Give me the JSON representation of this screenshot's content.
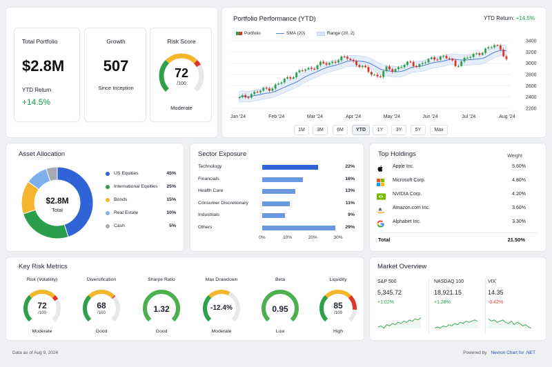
{
  "summary": {
    "total_portfolio": {
      "title": "Total Portfolio",
      "value": "$2.8M",
      "sub_label": "YTD Return",
      "sub_value": "+14.5%"
    },
    "growth": {
      "title": "Growth",
      "value": "507",
      "sub_label": "Since Inception"
    },
    "risk_score": {
      "title": "Risk Score",
      "value": "72",
      "denom": "/100",
      "label": "Moderate",
      "level": 0.72
    }
  },
  "performance": {
    "title": "Portfolio Performance (YTD)",
    "ytd_label": "YTD Return:",
    "ytd_value": "+14.5%",
    "legend": {
      "portfolio": "Portfolio",
      "sma": "SMA (20)",
      "range": "Range (20, 2)"
    },
    "ranges": [
      "1M",
      "3M",
      "6M",
      "YTD",
      "1Y",
      "3Y",
      "5Y",
      "Max"
    ],
    "active_range": "YTD"
  },
  "chart_data": {
    "type": "candlestick",
    "x_ticks": [
      "Jan '24",
      "Feb '24",
      "Mar '24",
      "Apr '24",
      "May '24",
      "Jun '24",
      "Jul '24",
      "Aug '24"
    ],
    "ylim": [
      2200,
      3400
    ],
    "y_ticks": [
      2200,
      2400,
      2600,
      2800,
      3000,
      3200,
      3400
    ],
    "series": [
      {
        "name": "Portfolio",
        "close": [
          2380,
          2410,
          2460,
          2500,
          2540,
          2560,
          2620,
          2700,
          2760,
          2820,
          2880,
          2900,
          2950,
          3000,
          2980,
          3050,
          3080,
          3100,
          3020,
          2950,
          2880,
          2800,
          2760,
          2900,
          2880,
          2920,
          2980,
          3000,
          2950,
          3020,
          3060,
          3100,
          3120,
          3080,
          2950,
          3050,
          3100,
          3150,
          3200,
          3250,
          3320,
          3280,
          3060
        ]
      },
      {
        "name": "SMA (20)"
      },
      {
        "name": "Range (20, 2)"
      }
    ]
  },
  "allocation": {
    "title": "Asset Allocation",
    "center_value": "$2.8M",
    "center_label": "Total",
    "items": [
      {
        "label": "US Equities",
        "pct": "45%",
        "value": 45,
        "color": "#2f63d6"
      },
      {
        "label": "International Equities",
        "pct": "25%",
        "value": 25,
        "color": "#2a9d4b"
      },
      {
        "label": "Bonds",
        "pct": "15%",
        "value": 15,
        "color": "#f5b52e"
      },
      {
        "label": "Real Estate",
        "pct": "10%",
        "value": 10,
        "color": "#7fb0ee"
      },
      {
        "label": "Cash",
        "pct": "5%",
        "value": 5,
        "color": "#a6abb3"
      }
    ]
  },
  "sectors": {
    "title": "Sector Exposure",
    "items": [
      {
        "label": "Technology",
        "pct": "22%",
        "value": 22
      },
      {
        "label": "Financials",
        "pct": "16%",
        "value": 16
      },
      {
        "label": "Health Care",
        "pct": "13%",
        "value": 13
      },
      {
        "label": "Consumer Discretionary",
        "pct": "11%",
        "value": 11
      },
      {
        "label": "Industrials",
        "pct": "9%",
        "value": 9
      },
      {
        "label": "Others",
        "pct": "29%",
        "value": 29
      }
    ],
    "axis": [
      "0%",
      "10%",
      "20%",
      "30%"
    ]
  },
  "holdings": {
    "title": "Top Holdings",
    "weight_header": "Weight",
    "items": [
      {
        "name": "Apple Inc.",
        "weight": "5.60%",
        "icon": "apple-icon"
      },
      {
        "name": "Microsoft Corp.",
        "weight": "4.80%",
        "icon": "microsoft-icon"
      },
      {
        "name": "NVIDIA Corp.",
        "weight": "4.20%",
        "icon": "nvidia-icon"
      },
      {
        "name": "Amazon.com Inc.",
        "weight": "3.60%",
        "icon": "amazon-icon"
      },
      {
        "name": "Alphabet Inc.",
        "weight": "3.30%",
        "icon": "google-icon"
      }
    ],
    "total_label": "Total",
    "total_value": "21.50%"
  },
  "risk_metrics": {
    "title": "Key Risk Metrics",
    "items": [
      {
        "title": "Risk (Volatility)",
        "value": "72",
        "denom": "/100",
        "label": "Moderate",
        "level": 0.72,
        "color": "multi"
      },
      {
        "title": "Diversification",
        "value": "68",
        "denom": "/100",
        "label": "Good",
        "level": 0.68,
        "color": "multi"
      },
      {
        "title": "Sharpe Ratio",
        "value": "1.32",
        "denom": "",
        "label": "Good",
        "level": 0.7,
        "color": "#4caf50"
      },
      {
        "title": "Max Drawdown",
        "value": "-12.4%",
        "denom": "",
        "label": "Moderate",
        "level": 0.6,
        "color": "multi"
      },
      {
        "title": "Beta",
        "value": "0.95",
        "denom": "",
        "label": "Low",
        "level": 0.62,
        "color": "#4caf50"
      },
      {
        "title": "Liquidity",
        "value": "85",
        "denom": "/100",
        "label": "High",
        "level": 0.85,
        "color": "multi"
      }
    ]
  },
  "market": {
    "title": "Market Overview",
    "items": [
      {
        "name": "S&P 500",
        "value": "5,345.72",
        "change": "+1.02%",
        "dir": "up"
      },
      {
        "name": "NASDAQ 100",
        "value": "18,921.15",
        "change": "+1.28%",
        "dir": "up"
      },
      {
        "name": "VIX",
        "value": "14.35",
        "change": "-0.42%",
        "dir": "down"
      }
    ]
  },
  "footer": {
    "date": "Data as of Aug 9, 2024",
    "powered": "Powered by",
    "brand": "Nevron Chart for .NET"
  }
}
